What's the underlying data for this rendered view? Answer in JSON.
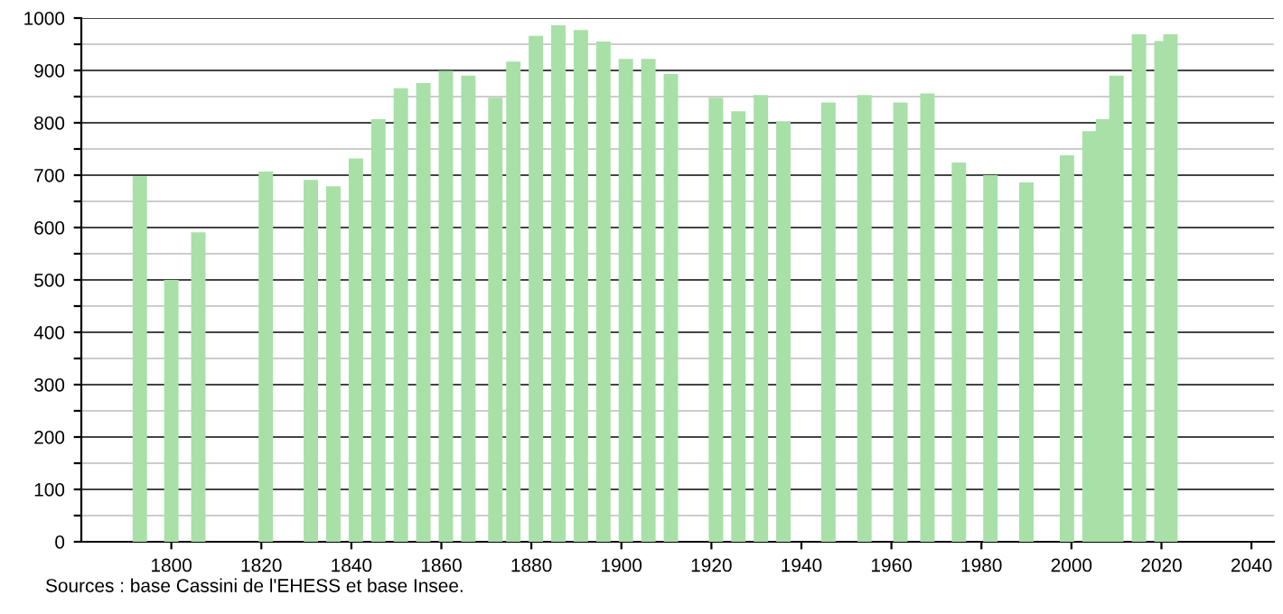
{
  "chart_data": {
    "type": "bar",
    "color": "#a8e0a8",
    "x": [
      1793,
      1800,
      1806,
      1821,
      1831,
      1836,
      1841,
      1846,
      1851,
      1856,
      1861,
      1866,
      1872,
      1876,
      1881,
      1886,
      1891,
      1896,
      1901,
      1906,
      1911,
      1921,
      1926,
      1931,
      1936,
      1946,
      1954,
      1962,
      1968,
      1975,
      1982,
      1990,
      1999,
      2004,
      2007,
      2010,
      2015,
      2020,
      2022
    ],
    "values": [
      698,
      500,
      591,
      707,
      691,
      679,
      732,
      807,
      866,
      876,
      899,
      890,
      848,
      917,
      966,
      986,
      977,
      955,
      922,
      922,
      893,
      848,
      822,
      853,
      803,
      839,
      853,
      839,
      856,
      724,
      700,
      686,
      738,
      784,
      807,
      890,
      969,
      956,
      969
    ],
    "xlim": [
      1780,
      2045
    ],
    "xticks": [
      1800,
      1820,
      1840,
      1860,
      1880,
      1900,
      1920,
      1940,
      1960,
      1980,
      2000,
      2020,
      2040
    ],
    "ylim": [
      0,
      1000
    ],
    "yticks": [
      0,
      {
        "value": 50,
        "label": null
      },
      100,
      {
        "value": 150,
        "label": null
      },
      200,
      {
        "value": 250,
        "label": null
      },
      300,
      {
        "value": 350,
        "label": null
      },
      400,
      {
        "value": 450,
        "label": null
      },
      500,
      {
        "value": 550,
        "label": null
      },
      600,
      {
        "value": 650,
        "label": null
      },
      700,
      {
        "value": 750,
        "label": null
      },
      800,
      {
        "value": 850,
        "label": null
      },
      900,
      {
        "value": 950,
        "label": null
      },
      1000
    ],
    "grid": "y",
    "annotations": [
      "Sources : base Cassini de l'EHESS et base Insee."
    ]
  }
}
